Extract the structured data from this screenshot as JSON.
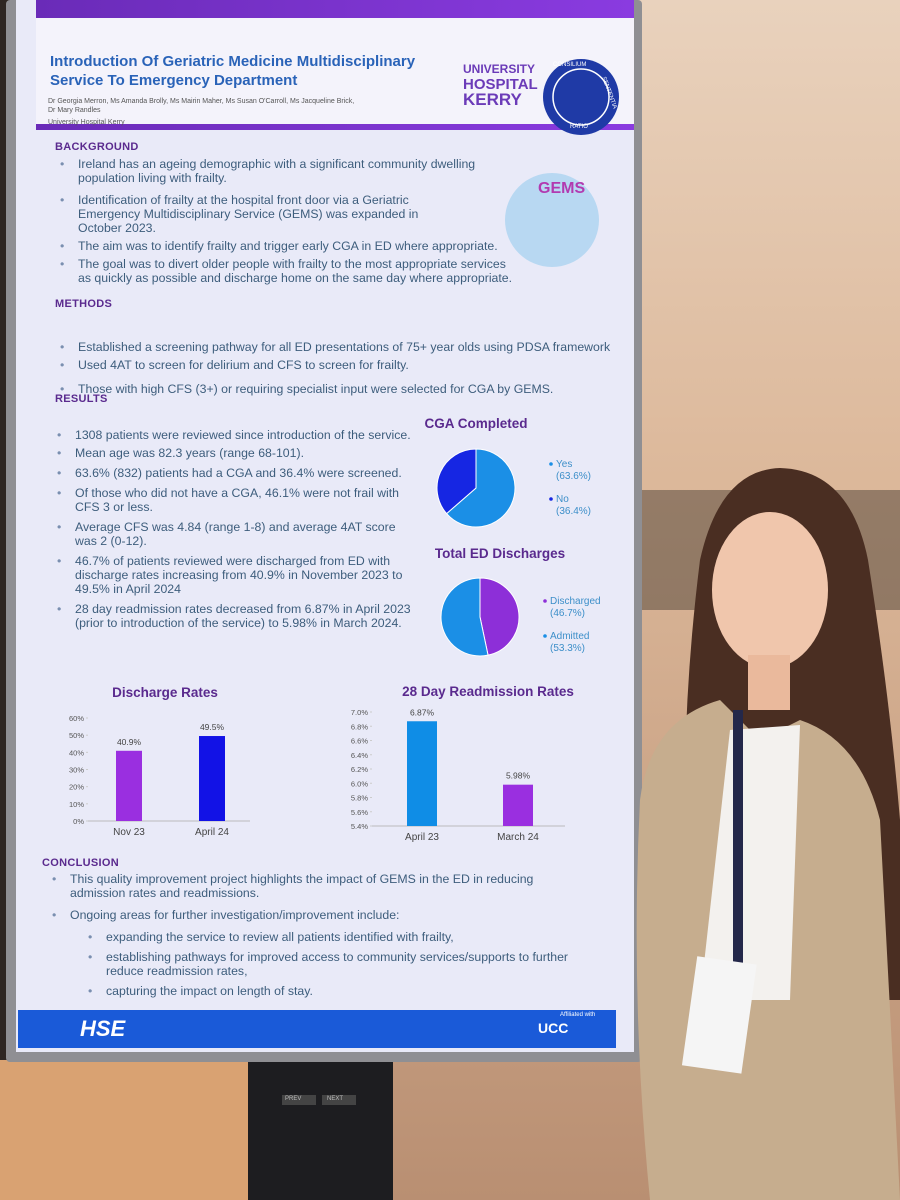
{
  "poster": {
    "header": {
      "title_lines": [
        "Introduction Of Geriatric Medicine Multidisciplinary",
        "Service To Emergency Department"
      ],
      "author_lines": [
        "Dr Georgia Merron, Ms Amanda Brolly, Ms Mairin Maher, Ms Susan O'Carroll, Ms Jacqueline Brick,",
        "Dr Mary Randles"
      ],
      "affiliation": "University Hospital Kerry",
      "logo_lines": [
        "UNIVERSITY",
        "HOSPITAL",
        "KERRY"
      ],
      "seal_words": [
        "CONSILIUM",
        "SENTENTIA",
        "RATIO"
      ]
    },
    "gems_logo": "GEMS",
    "background": {
      "heading": "BACKGROUND",
      "bullets": [
        "Ireland has an ageing demographic with a significant community dwelling population living with frailty.",
        "Identification of frailty at the hospital front door via a Geriatric Emergency Multidisciplinary Service (GEMS) was expanded in October 2023.",
        "The aim was to identify frailty and trigger early CGA in ED where appropriate.",
        "The goal was to divert older people with frailty to the most appropriate services as quickly as possible and discharge home on the same day where appropriate."
      ]
    },
    "methods": {
      "heading": "METHODS",
      "bullets": [
        "Established a screening pathway for all ED presentations of 75+ year olds using PDSA framework",
        "Used 4AT to screen for delirium and CFS to screen for frailty.",
        "Those with high CFS (3+) or requiring specialist input were selected for CGA by GEMS."
      ]
    },
    "results": {
      "heading": "RESULTS",
      "bullets": [
        "1308 patients were reviewed since introduction of the service.",
        "Mean age was 82.3 years (range 68-101).",
        "63.6% (832) patients had a CGA and 36.4% were screened.",
        "Of those who did not have a CGA, 46.1% were not frail with CFS 3 or less.",
        "Average CFS was 4.84 (range 1-8) and average 4AT score was 2 (0-12).",
        "46.7% of patients reviewed were discharged from ED with discharge rates increasing from 40.9% in November 2023 to 49.5% in April 2024",
        "28 day readmission rates decreased  from 6.87% in April 2023 (prior to introduction of the service) to 5.98% in March 2024."
      ]
    },
    "conclusion": {
      "heading": "CONCLUSION",
      "bullets": [
        "This quality improvement project highlights the impact of GEMS in the ED in reducing admission rates and readmissions.",
        "Ongoing areas for further investigation/improvement include:"
      ],
      "sub_bullets": [
        "expanding the service to review all patients identified with frailty,",
        "establishing pathways for improved access to community services/supports to further reduce readmission rates,",
        "capturing the impact on length of stay."
      ]
    },
    "footer": {
      "hse": "HSE",
      "affiliated": "Affiliated with",
      "ucc": "UCC"
    },
    "stand_buttons": [
      "PREV",
      "NEXT"
    ]
  },
  "chart_data": [
    {
      "type": "pie",
      "title": "CGA Completed",
      "categories": [
        "Yes",
        "No"
      ],
      "values": [
        63.6,
        36.4
      ],
      "value_labels": [
        "(63.6%)",
        "(36.4%)"
      ],
      "colors": [
        "#1b8fe6",
        "#1626e3"
      ]
    },
    {
      "type": "pie",
      "title": "Total ED Discharges",
      "categories": [
        "Discharged",
        "Admitted"
      ],
      "values": [
        46.7,
        53.3
      ],
      "value_labels": [
        "(46.7%)",
        "(53.3%)"
      ],
      "colors": [
        "#8d2fd8",
        "#1b8fe6"
      ]
    },
    {
      "type": "bar",
      "title": "Discharge Rates",
      "categories": [
        "Nov 23",
        "April 24"
      ],
      "values": [
        40.9,
        49.5
      ],
      "value_labels": [
        "40.9%",
        "49.5%"
      ],
      "colors": [
        "#9a2fe0",
        "#1212e6"
      ],
      "ylim": [
        0,
        60
      ],
      "yticks": [
        {
          "value": 0,
          "label": "0%"
        },
        {
          "value": 10,
          "label": "10%"
        },
        {
          "value": 20,
          "label": "20%"
        },
        {
          "value": 30,
          "label": "30%"
        },
        {
          "value": 40,
          "label": "40%"
        },
        {
          "value": 50,
          "label": "50%"
        },
        {
          "value": 60,
          "label": "60%"
        }
      ]
    },
    {
      "type": "bar",
      "title": "28 Day Readmission Rates",
      "categories": [
        "April 23",
        "March 24"
      ],
      "values": [
        6.87,
        5.98
      ],
      "value_labels": [
        "6.87%",
        "5.98%"
      ],
      "colors": [
        "#0f8de6",
        "#9a2fe0"
      ],
      "ylim": [
        5.4,
        7.0
      ],
      "yticks": [
        {
          "value": 5.4,
          "label": "5.4%"
        },
        {
          "value": 5.6,
          "label": "5.6%"
        },
        {
          "value": 5.8,
          "label": "5.8%"
        },
        {
          "value": 6.0,
          "label": "6.0%"
        },
        {
          "value": 6.2,
          "label": "6.2%"
        },
        {
          "value": 6.4,
          "label": "6.4%"
        },
        {
          "value": 6.6,
          "label": "6.6%"
        },
        {
          "value": 6.8,
          "label": "6.8%"
        },
        {
          "value": 7.0,
          "label": "7.0%"
        }
      ]
    }
  ]
}
